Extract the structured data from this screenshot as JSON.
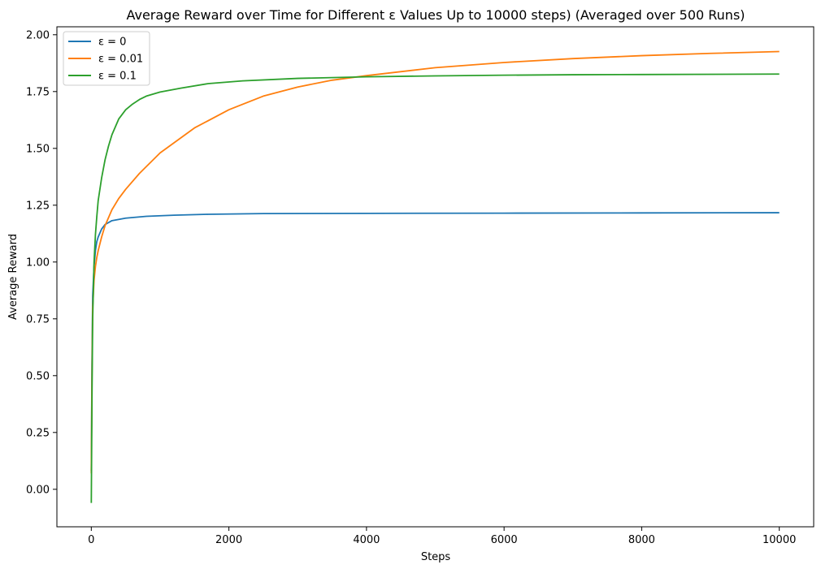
{
  "chart_data": {
    "type": "line",
    "title": "Average Reward over Time for Different ε Values Up to 10000 steps) (Averaged over 500 Runs)",
    "xlabel": "Steps",
    "ylabel": "Average Reward",
    "xlim": [
      -500,
      10500
    ],
    "ylim": [
      -0.165,
      2.035
    ],
    "xticks": [
      0,
      2000,
      4000,
      6000,
      8000,
      10000
    ],
    "yticks": [
      0.0,
      0.25,
      0.5,
      0.75,
      1.0,
      1.25,
      1.5,
      1.75,
      2.0
    ],
    "xtick_labels": [
      "0",
      "2000",
      "4000",
      "6000",
      "8000",
      "10000"
    ],
    "ytick_labels": [
      "0.00",
      "0.25",
      "0.50",
      "0.75",
      "1.00",
      "1.25",
      "1.50",
      "1.75",
      "2.00"
    ],
    "grid": false,
    "legend_position": "top-left",
    "series": [
      {
        "name": "ε = 0",
        "color": "#1f77b4",
        "x": [
          0,
          10,
          20,
          40,
          60,
          80,
          100,
          150,
          200,
          300,
          500,
          800,
          1200,
          1700,
          2500,
          4000,
          6000,
          8000,
          10000
        ],
        "y": [
          0.08,
          0.55,
          0.85,
          0.98,
          1.05,
          1.09,
          1.11,
          1.145,
          1.165,
          1.182,
          1.193,
          1.201,
          1.206,
          1.21,
          1.213,
          1.214,
          1.215,
          1.216,
          1.217
        ]
      },
      {
        "name": "ε = 0.01",
        "color": "#ff7f0e",
        "x": [
          0,
          10,
          20,
          40,
          60,
          80,
          100,
          150,
          200,
          300,
          400,
          500,
          700,
          1000,
          1500,
          2000,
          2500,
          3000,
          3500,
          4000,
          5000,
          6000,
          7000,
          8000,
          9000,
          10000
        ],
        "y": [
          0.07,
          0.5,
          0.8,
          0.92,
          0.98,
          1.02,
          1.05,
          1.11,
          1.16,
          1.23,
          1.28,
          1.32,
          1.39,
          1.48,
          1.59,
          1.67,
          1.73,
          1.77,
          1.8,
          1.82,
          1.855,
          1.878,
          1.895,
          1.908,
          1.918,
          1.926
        ]
      },
      {
        "name": "ε = 0.1",
        "color": "#2ca02c",
        "x": [
          0,
          10,
          20,
          40,
          60,
          80,
          100,
          150,
          200,
          250,
          300,
          400,
          500,
          600,
          700,
          800,
          1000,
          1300,
          1700,
          2200,
          3000,
          4000,
          5000,
          6000,
          7000,
          8000,
          10000
        ],
        "y": [
          -0.06,
          0.4,
          0.75,
          1.0,
          1.12,
          1.2,
          1.27,
          1.37,
          1.45,
          1.51,
          1.56,
          1.63,
          1.67,
          1.695,
          1.715,
          1.73,
          1.748,
          1.765,
          1.785,
          1.797,
          1.808,
          1.815,
          1.819,
          1.822,
          1.824,
          1.825,
          1.827
        ]
      }
    ]
  }
}
